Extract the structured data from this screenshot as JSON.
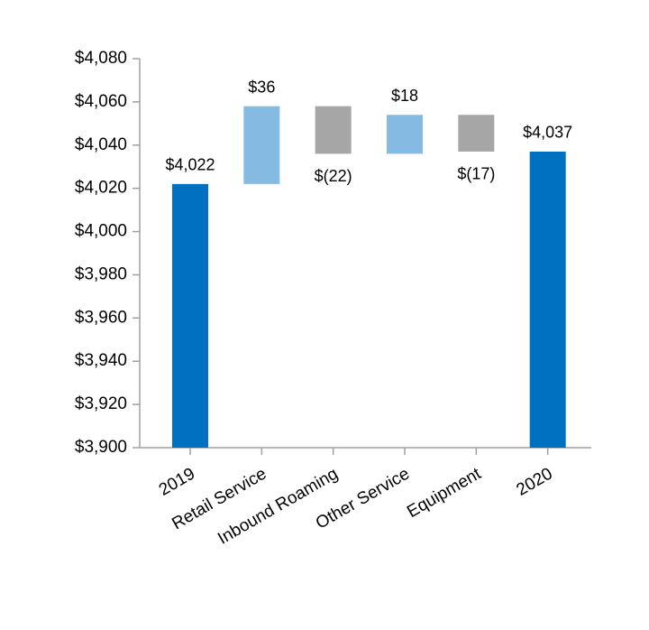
{
  "chart_data": {
    "type": "waterfall",
    "categories": [
      "2019",
      "Retail Service",
      "Inbound Roaming",
      "Other Service",
      "Equipment",
      "2020"
    ],
    "values": [
      4022,
      36,
      -22,
      18,
      -17,
      4037
    ],
    "value_labels": [
      "$4,022",
      "$36",
      "$(22)",
      "$18",
      "$(17)",
      "$4,037"
    ],
    "total": [
      true,
      false,
      false,
      false,
      false,
      true
    ],
    "total_color": "#0070c0",
    "increase_color": "#85bbe3",
    "decrease_color": "#a6a6a6",
    "ylim": [
      3900,
      4080
    ],
    "yticks": [
      {
        "value": 3900,
        "label": "$3,900"
      },
      {
        "value": 3920,
        "label": "$3,920"
      },
      {
        "value": 3940,
        "label": "$3,940"
      },
      {
        "value": 3960,
        "label": "$3,960"
      },
      {
        "value": 3980,
        "label": "$3,980"
      },
      {
        "value": 4000,
        "label": "$4,000"
      },
      {
        "value": 4020,
        "label": "$4,020"
      },
      {
        "value": 4040,
        "label": "$4,040"
      },
      {
        "value": 4060,
        "label": "$4,060"
      },
      {
        "value": 4080,
        "label": "$4,080"
      }
    ],
    "grid": false
  }
}
